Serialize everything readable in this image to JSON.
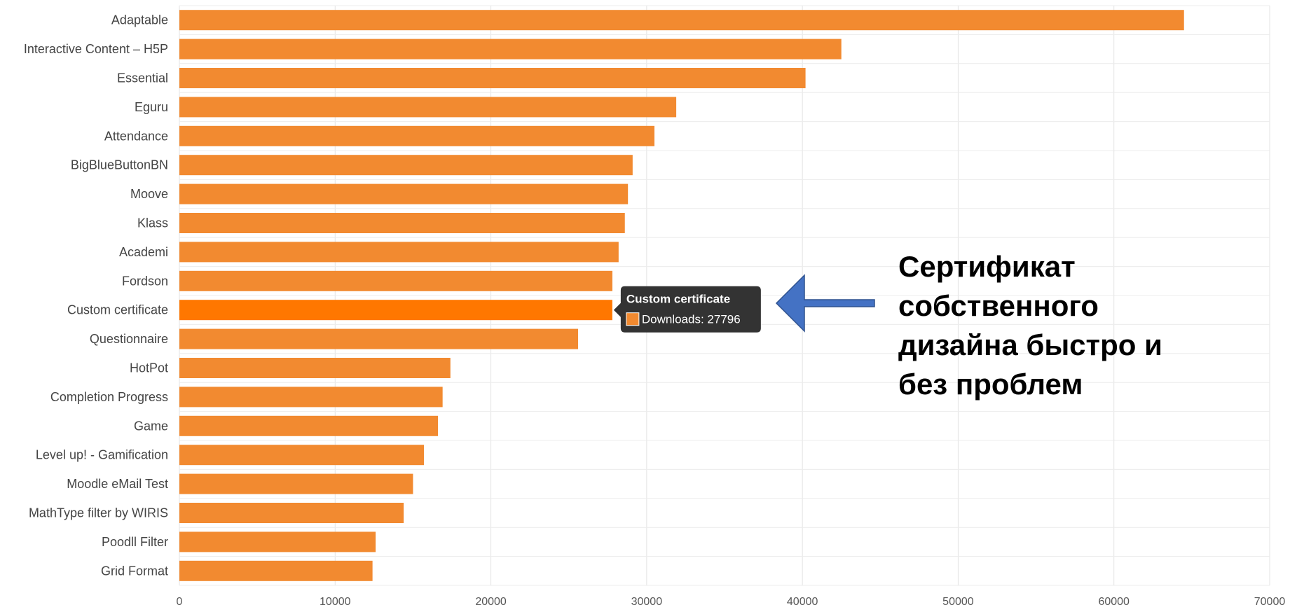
{
  "chart_data": {
    "type": "bar",
    "orientation": "horizontal",
    "categories": [
      "Adaptable",
      "Interactive Content – H5P",
      "Essential",
      "Eguru",
      "Attendance",
      "BigBlueButtonBN",
      "Moove",
      "Klass",
      "Academi",
      "Fordson",
      "Custom certificate",
      "Questionnaire",
      "HotPot",
      "Completion Progress",
      "Game",
      "Level up! - Gamification",
      "Moodle eMail Test",
      "MathType filter by WIRIS",
      "Poodll Filter",
      "Grid Format"
    ],
    "values": [
      64500,
      42500,
      40200,
      31900,
      30500,
      29100,
      28800,
      28600,
      28200,
      27800,
      27796,
      25600,
      17400,
      16900,
      16600,
      15700,
      15000,
      14400,
      12600,
      12400
    ],
    "highlight_index": 10,
    "xlim": [
      0,
      70000
    ],
    "xticks": [
      0,
      10000,
      20000,
      30000,
      40000,
      50000,
      60000,
      70000
    ],
    "grid": true,
    "bar_color": "#f28a30",
    "highlight_color": "#ff7700"
  },
  "tooltip": {
    "title": "Custom certificate",
    "text": "Downloads: 27796",
    "background": "#333333",
    "swatch_color": "#f28a30"
  },
  "annotation": {
    "lines": [
      "Сертификат",
      "собственного",
      "дизайна быстро и",
      "без проблем"
    ],
    "arrow_color": "#4472c4"
  }
}
